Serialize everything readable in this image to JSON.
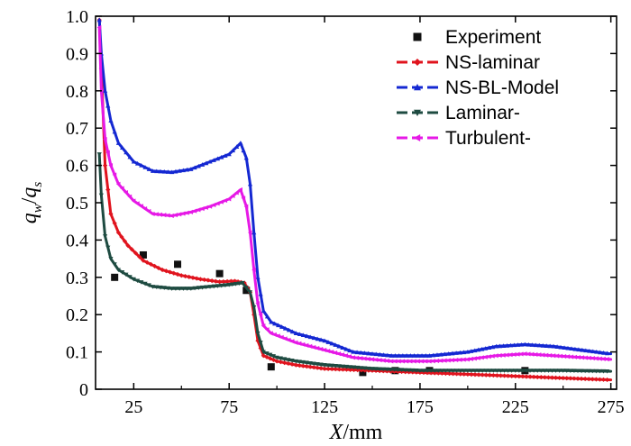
{
  "chart_data": {
    "type": "line",
    "title": "",
    "xlabel_var": "X",
    "xlabel_unit": "/mm",
    "ylabel_num": "q",
    "ylabel_num_sub": "w",
    "ylabel_den": "q",
    "ylabel_den_sub": "s",
    "ylabel_sep": "/",
    "xlim": [
      5,
      278
    ],
    "ylim": [
      0,
      1.0
    ],
    "xticks": [
      "25",
      "75",
      "125",
      "175",
      "225",
      "275"
    ],
    "xtick_values": [
      25,
      75,
      125,
      175,
      225,
      275
    ],
    "yticks": [
      "0",
      "0.1",
      "0.2",
      "0.3",
      "0.4",
      "0.5",
      "0.6",
      "0.7",
      "0.8",
      "0.9",
      "1.0"
    ],
    "ytick_values": [
      0,
      0.1,
      0.2,
      0.3,
      0.4,
      0.5,
      0.6,
      0.7,
      0.8,
      0.9,
      1.0
    ],
    "legend_position": "top-right",
    "series": [
      {
        "name": "Experiment",
        "style": "points",
        "marker": "square",
        "color": "#111111",
        "points": [
          [
            15,
            0.3
          ],
          [
            30,
            0.36
          ],
          [
            48,
            0.335
          ],
          [
            70,
            0.31
          ],
          [
            84,
            0.265
          ],
          [
            97,
            0.06
          ],
          [
            145,
            0.045
          ],
          [
            162,
            0.05
          ],
          [
            180,
            0.05
          ],
          [
            230,
            0.05
          ]
        ]
      },
      {
        "name": "NS-laminar",
        "style": "line",
        "marker": "diamond",
        "color": "#e0141e",
        "points": [
          [
            7,
            0.99
          ],
          [
            8,
            0.86
          ],
          [
            10,
            0.6
          ],
          [
            13,
            0.47
          ],
          [
            17,
            0.42
          ],
          [
            22,
            0.385
          ],
          [
            30,
            0.345
          ],
          [
            40,
            0.32
          ],
          [
            50,
            0.305
          ],
          [
            60,
            0.295
          ],
          [
            70,
            0.288
          ],
          [
            78,
            0.29
          ],
          [
            83,
            0.285
          ],
          [
            86,
            0.26
          ],
          [
            88,
            0.2
          ],
          [
            90,
            0.13
          ],
          [
            93,
            0.09
          ],
          [
            100,
            0.075
          ],
          [
            110,
            0.065
          ],
          [
            125,
            0.055
          ],
          [
            150,
            0.05
          ],
          [
            175,
            0.045
          ],
          [
            200,
            0.04
          ],
          [
            225,
            0.035
          ],
          [
            250,
            0.03
          ],
          [
            275,
            0.025
          ]
        ]
      },
      {
        "name": "NS-BL-Model",
        "style": "line",
        "marker": "triangle-up",
        "color": "#1428d2",
        "points": [
          [
            7,
            0.99
          ],
          [
            8,
            0.9
          ],
          [
            10,
            0.8
          ],
          [
            13,
            0.72
          ],
          [
            17,
            0.66
          ],
          [
            25,
            0.61
          ],
          [
            35,
            0.585
          ],
          [
            45,
            0.582
          ],
          [
            55,
            0.59
          ],
          [
            65,
            0.61
          ],
          [
            75,
            0.63
          ],
          [
            81,
            0.66
          ],
          [
            84,
            0.62
          ],
          [
            86,
            0.55
          ],
          [
            88,
            0.42
          ],
          [
            90,
            0.3
          ],
          [
            93,
            0.21
          ],
          [
            97,
            0.18
          ],
          [
            110,
            0.15
          ],
          [
            125,
            0.13
          ],
          [
            140,
            0.1
          ],
          [
            160,
            0.09
          ],
          [
            180,
            0.09
          ],
          [
            200,
            0.1
          ],
          [
            215,
            0.115
          ],
          [
            230,
            0.12
          ],
          [
            245,
            0.115
          ],
          [
            260,
            0.105
          ],
          [
            275,
            0.095
          ]
        ]
      },
      {
        "name": "Laminar-",
        "style": "line",
        "marker": "triangle-down",
        "color": "#1e4b41",
        "points": [
          [
            7,
            0.63
          ],
          [
            8,
            0.52
          ],
          [
            10,
            0.41
          ],
          [
            13,
            0.35
          ],
          [
            17,
            0.32
          ],
          [
            25,
            0.295
          ],
          [
            35,
            0.275
          ],
          [
            45,
            0.27
          ],
          [
            55,
            0.27
          ],
          [
            65,
            0.275
          ],
          [
            75,
            0.28
          ],
          [
            82,
            0.285
          ],
          [
            86,
            0.26
          ],
          [
            88,
            0.22
          ],
          [
            90,
            0.15
          ],
          [
            93,
            0.1
          ],
          [
            100,
            0.085
          ],
          [
            110,
            0.075
          ],
          [
            125,
            0.065
          ],
          [
            150,
            0.055
          ],
          [
            175,
            0.05
          ],
          [
            200,
            0.05
          ],
          [
            225,
            0.05
          ],
          [
            250,
            0.05
          ],
          [
            275,
            0.048
          ]
        ]
      },
      {
        "name": "Turbulent-",
        "style": "line",
        "marker": "triangle-left",
        "color": "#e619e6",
        "points": [
          [
            7,
            0.97
          ],
          [
            8,
            0.8
          ],
          [
            10,
            0.67
          ],
          [
            13,
            0.6
          ],
          [
            17,
            0.55
          ],
          [
            25,
            0.505
          ],
          [
            35,
            0.47
          ],
          [
            45,
            0.465
          ],
          [
            55,
            0.475
          ],
          [
            65,
            0.49
          ],
          [
            75,
            0.51
          ],
          [
            81,
            0.535
          ],
          [
            84,
            0.49
          ],
          [
            86,
            0.42
          ],
          [
            88,
            0.32
          ],
          [
            90,
            0.23
          ],
          [
            93,
            0.17
          ],
          [
            97,
            0.15
          ],
          [
            110,
            0.125
          ],
          [
            125,
            0.105
          ],
          [
            140,
            0.085
          ],
          [
            160,
            0.075
          ],
          [
            180,
            0.075
          ],
          [
            200,
            0.08
          ],
          [
            215,
            0.09
          ],
          [
            230,
            0.095
          ],
          [
            245,
            0.09
          ],
          [
            260,
            0.085
          ],
          [
            275,
            0.08
          ]
        ]
      }
    ]
  }
}
